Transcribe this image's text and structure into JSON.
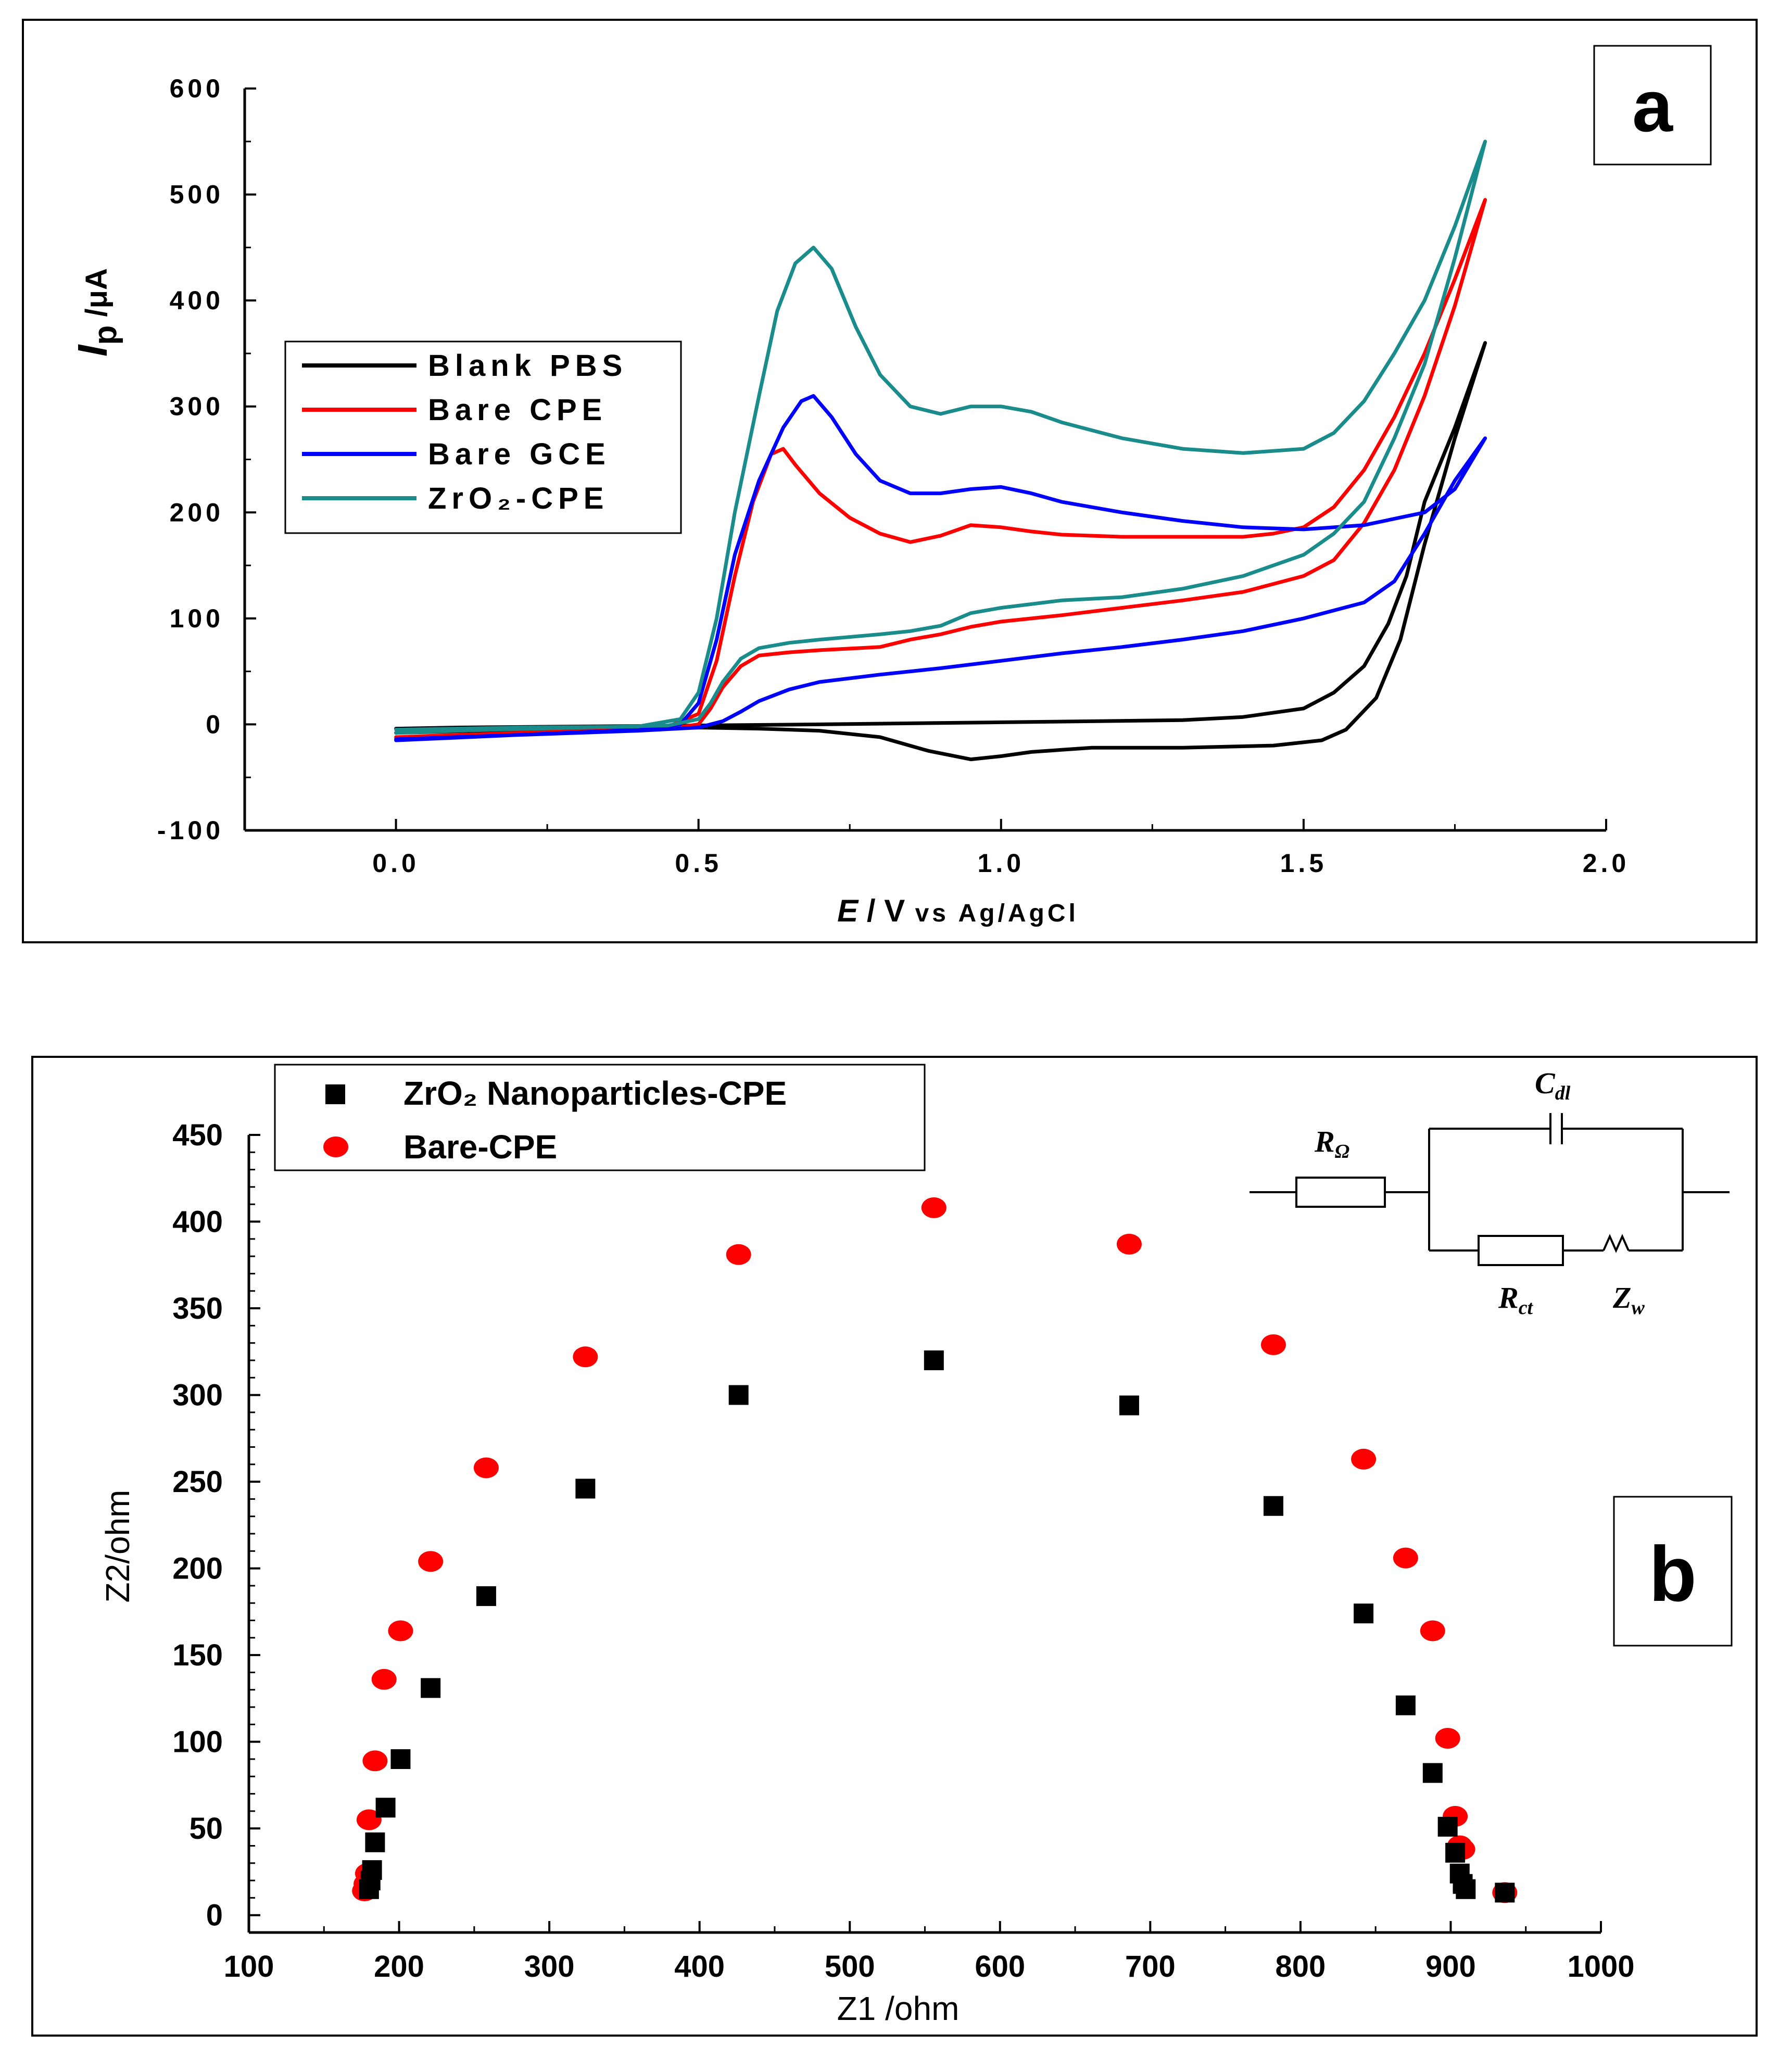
{
  "chart_data": [
    {
      "panel": "a",
      "type": "line",
      "title": "",
      "panel_label": "a",
      "xlabel": {
        "symbol": "E",
        "unit": " / V",
        "ref": " vs Ag/AgCl"
      },
      "ylabel": {
        "symbol": "I",
        "sub": "p",
        "unit": " /μA"
      },
      "xlim": [
        -0.25,
        2.0
      ],
      "ylim": [
        -100,
        600
      ],
      "xticks": [
        "0.0",
        "0.5",
        "1.0",
        "1.5",
        "2.0"
      ],
      "xtick_values": [
        0,
        0.5,
        1.0,
        1.5,
        2.0
      ],
      "yticks": [
        "-100",
        "0",
        "100",
        "200",
        "300",
        "400",
        "500",
        "600"
      ],
      "ytick_values": [
        -100,
        0,
        100,
        200,
        300,
        400,
        500,
        600
      ],
      "legend_position": "middle-left",
      "series": [
        {
          "name": "Blank PBS",
          "color": "#000000",
          "points": [
            [
              0.0,
              -8
            ],
            [
              0.2,
              -5
            ],
            [
              0.4,
              -4
            ],
            [
              0.5,
              -3
            ],
            [
              0.6,
              -4
            ],
            [
              0.7,
              -6
            ],
            [
              0.8,
              -12
            ],
            [
              0.88,
              -25
            ],
            [
              0.95,
              -33
            ],
            [
              1.0,
              -30
            ],
            [
              1.05,
              -26
            ],
            [
              1.15,
              -22
            ],
            [
              1.3,
              -22
            ],
            [
              1.45,
              -20
            ],
            [
              1.53,
              -15
            ],
            [
              1.57,
              -5
            ],
            [
              1.62,
              25
            ],
            [
              1.66,
              80
            ],
            [
              1.7,
              170
            ],
            [
              1.75,
              270
            ],
            [
              1.8,
              360
            ],
            [
              1.75,
              280
            ],
            [
              1.7,
              210
            ],
            [
              1.67,
              140
            ],
            [
              1.64,
              95
            ],
            [
              1.6,
              55
            ],
            [
              1.55,
              30
            ],
            [
              1.5,
              15
            ],
            [
              1.4,
              7
            ],
            [
              1.3,
              4
            ],
            [
              1.0,
              2
            ],
            [
              0.7,
              0
            ],
            [
              0.5,
              -1
            ],
            [
              0.3,
              -2
            ],
            [
              0.1,
              -3
            ],
            [
              0.0,
              -4
            ]
          ]
        },
        {
          "name": "Bare CPE",
          "color": "#ff0000",
          "points": [
            [
              0.0,
              -12
            ],
            [
              0.1,
              -10
            ],
            [
              0.3,
              -6
            ],
            [
              0.45,
              -2
            ],
            [
              0.5,
              10
            ],
            [
              0.53,
              60
            ],
            [
              0.56,
              140
            ],
            [
              0.59,
              210
            ],
            [
              0.62,
              255
            ],
            [
              0.64,
              260
            ],
            [
              0.66,
              245
            ],
            [
              0.7,
              218
            ],
            [
              0.75,
              195
            ],
            [
              0.8,
              180
            ],
            [
              0.85,
              172
            ],
            [
              0.9,
              178
            ],
            [
              0.95,
              188
            ],
            [
              1.0,
              186
            ],
            [
              1.05,
              182
            ],
            [
              1.1,
              179
            ],
            [
              1.2,
              177
            ],
            [
              1.3,
              177
            ],
            [
              1.4,
              177
            ],
            [
              1.45,
              180
            ],
            [
              1.5,
              186
            ],
            [
              1.55,
              205
            ],
            [
              1.6,
              240
            ],
            [
              1.65,
              290
            ],
            [
              1.7,
              350
            ],
            [
              1.75,
              420
            ],
            [
              1.8,
              495
            ],
            [
              1.75,
              395
            ],
            [
              1.7,
              310
            ],
            [
              1.65,
              240
            ],
            [
              1.6,
              190
            ],
            [
              1.55,
              155
            ],
            [
              1.5,
              140
            ],
            [
              1.4,
              125
            ],
            [
              1.3,
              117
            ],
            [
              1.2,
              110
            ],
            [
              1.1,
              103
            ],
            [
              1.0,
              97
            ],
            [
              0.95,
              92
            ],
            [
              0.9,
              85
            ],
            [
              0.85,
              80
            ],
            [
              0.8,
              73
            ],
            [
              0.7,
              70
            ],
            [
              0.65,
              68
            ],
            [
              0.6,
              65
            ],
            [
              0.57,
              55
            ],
            [
              0.54,
              35
            ],
            [
              0.52,
              15
            ],
            [
              0.5,
              0
            ],
            [
              0.45,
              -4
            ],
            [
              0.3,
              -7
            ],
            [
              0.1,
              -10
            ],
            [
              0.0,
              -12
            ]
          ]
        },
        {
          "name": "Bare GCE",
          "color": "#0000ff",
          "points": [
            [
              0.0,
              -15
            ],
            [
              0.2,
              -10
            ],
            [
              0.4,
              -5
            ],
            [
              0.47,
              0
            ],
            [
              0.5,
              20
            ],
            [
              0.53,
              80
            ],
            [
              0.56,
              160
            ],
            [
              0.6,
              230
            ],
            [
              0.64,
              280
            ],
            [
              0.67,
              305
            ],
            [
              0.69,
              310
            ],
            [
              0.72,
              290
            ],
            [
              0.76,
              255
            ],
            [
              0.8,
              230
            ],
            [
              0.85,
              218
            ],
            [
              0.9,
              218
            ],
            [
              0.95,
              222
            ],
            [
              1.0,
              224
            ],
            [
              1.05,
              218
            ],
            [
              1.1,
              210
            ],
            [
              1.2,
              200
            ],
            [
              1.3,
              192
            ],
            [
              1.4,
              186
            ],
            [
              1.5,
              184
            ],
            [
              1.6,
              188
            ],
            [
              1.7,
              200
            ],
            [
              1.75,
              222
            ],
            [
              1.8,
              270
            ],
            [
              1.75,
              230
            ],
            [
              1.7,
              180
            ],
            [
              1.65,
              135
            ],
            [
              1.6,
              115
            ],
            [
              1.5,
              100
            ],
            [
              1.4,
              88
            ],
            [
              1.3,
              80
            ],
            [
              1.2,
              73
            ],
            [
              1.1,
              67
            ],
            [
              1.0,
              60
            ],
            [
              0.9,
              53
            ],
            [
              0.8,
              47
            ],
            [
              0.7,
              40
            ],
            [
              0.65,
              33
            ],
            [
              0.6,
              22
            ],
            [
              0.57,
              12
            ],
            [
              0.54,
              3
            ],
            [
              0.5,
              -3
            ],
            [
              0.4,
              -6
            ],
            [
              0.2,
              -10
            ],
            [
              0.0,
              -14
            ]
          ]
        },
        {
          "name": "ZrO₂-CPE",
          "color": "#1a8c8c",
          "points": [
            [
              0.0,
              -5
            ],
            [
              0.2,
              -3
            ],
            [
              0.4,
              -2
            ],
            [
              0.47,
              5
            ],
            [
              0.5,
              30
            ],
            [
              0.53,
              100
            ],
            [
              0.56,
              200
            ],
            [
              0.6,
              310
            ],
            [
              0.63,
              390
            ],
            [
              0.66,
              435
            ],
            [
              0.69,
              450
            ],
            [
              0.72,
              430
            ],
            [
              0.76,
              375
            ],
            [
              0.8,
              330
            ],
            [
              0.85,
              300
            ],
            [
              0.9,
              293
            ],
            [
              0.95,
              300
            ],
            [
              1.0,
              300
            ],
            [
              1.05,
              295
            ],
            [
              1.1,
              285
            ],
            [
              1.2,
              270
            ],
            [
              1.3,
              260
            ],
            [
              1.4,
              256
            ],
            [
              1.5,
              260
            ],
            [
              1.55,
              275
            ],
            [
              1.6,
              305
            ],
            [
              1.65,
              350
            ],
            [
              1.7,
              400
            ],
            [
              1.75,
              470
            ],
            [
              1.8,
              550
            ],
            [
              1.75,
              440
            ],
            [
              1.7,
              340
            ],
            [
              1.65,
              270
            ],
            [
              1.6,
              210
            ],
            [
              1.55,
              180
            ],
            [
              1.5,
              160
            ],
            [
              1.4,
              140
            ],
            [
              1.3,
              128
            ],
            [
              1.2,
              120
            ],
            [
              1.1,
              117
            ],
            [
              1.0,
              110
            ],
            [
              0.95,
              105
            ],
            [
              0.9,
              93
            ],
            [
              0.85,
              88
            ],
            [
              0.8,
              85
            ],
            [
              0.7,
              80
            ],
            [
              0.65,
              77
            ],
            [
              0.6,
              72
            ],
            [
              0.57,
              62
            ],
            [
              0.54,
              40
            ],
            [
              0.52,
              20
            ],
            [
              0.5,
              5
            ],
            [
              0.45,
              -1
            ],
            [
              0.3,
              -3
            ],
            [
              0.1,
              -6
            ],
            [
              0.0,
              -8
            ]
          ]
        }
      ]
    },
    {
      "panel": "b",
      "type": "scatter",
      "title": "",
      "panel_label": "b",
      "xlabel": "Z1 /ohm",
      "ylabel": "Z2/ohm",
      "xlim": [
        100,
        1000
      ],
      "ylim": [
        -10,
        450
      ],
      "xticks": [
        "100",
        "200",
        "300",
        "400",
        "500",
        "600",
        "700",
        "800",
        "900",
        "1000"
      ],
      "xtick_values": [
        100,
        200,
        300,
        400,
        500,
        600,
        700,
        800,
        900,
        1000
      ],
      "yticks": [
        "0",
        "50",
        "100",
        "150",
        "200",
        "250",
        "300",
        "350",
        "400",
        "450"
      ],
      "ytick_values": [
        0,
        50,
        100,
        150,
        200,
        250,
        300,
        350,
        400,
        450
      ],
      "legend_position": "top-left",
      "inset": {
        "type": "equivalent-circuit",
        "labels": [
          "RΩ",
          "Cdl",
          "Rct",
          "Zw"
        ]
      },
      "series": [
        {
          "name": "ZrO₂ Nanoparticles-CPE",
          "marker": "square",
          "color": "#000000",
          "x": [
            180,
            181,
            182,
            184,
            191,
            201,
            221,
            258,
            324,
            426,
            556,
            686,
            782,
            842,
            870,
            888,
            898,
            903,
            906,
            908,
            910,
            936
          ],
          "y": [
            15,
            20,
            26,
            42,
            62,
            90,
            131,
            184,
            246,
            300,
            320,
            294,
            236,
            174,
            121,
            82,
            51,
            36,
            24,
            18,
            15,
            13
          ]
        },
        {
          "name": "Bare-CPE",
          "marker": "circle",
          "color": "#ff0000",
          "x": [
            177,
            178,
            179,
            180,
            184,
            190,
            201,
            221,
            258,
            324,
            426,
            556,
            686,
            782,
            842,
            870,
            888,
            898,
            903,
            906,
            908,
            936
          ],
          "y": [
            14,
            18,
            24,
            55,
            89,
            136,
            164,
            204,
            258,
            322,
            381,
            408,
            387,
            329,
            263,
            206,
            164,
            102,
            57,
            40,
            38,
            13
          ]
        }
      ]
    }
  ]
}
